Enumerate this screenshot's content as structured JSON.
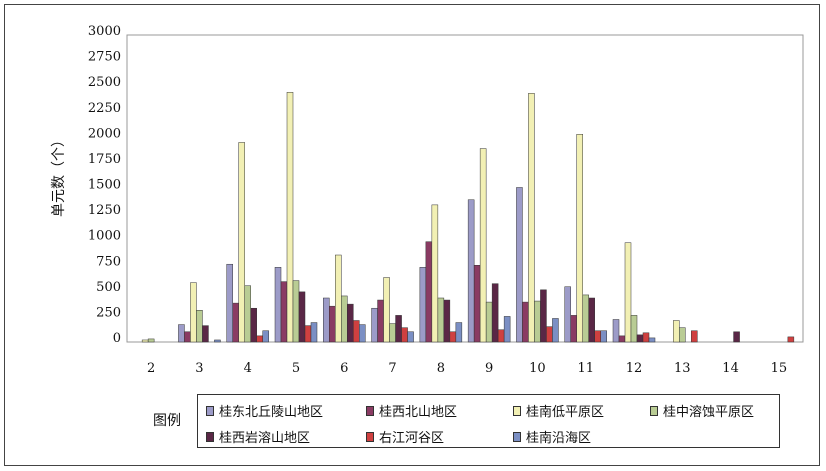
{
  "chart_data": {
    "type": "bar",
    "title": "",
    "xlabel": "",
    "ylabel": "单元数（个）",
    "categories": [
      "2",
      "3",
      "4",
      "5",
      "6",
      "7",
      "8",
      "9",
      "10",
      "11",
      "12",
      "13",
      "14",
      "15"
    ],
    "y_tick_labels": [
      "0",
      "250",
      "500",
      "750",
      "1000",
      "1250",
      "1500",
      "1750",
      "2000",
      "2250",
      "2500",
      "2750",
      "3000"
    ],
    "ylim": [
      0,
      3000
    ],
    "grid": false,
    "legend_title": "图例",
    "legend_position": "bottom",
    "series": [
      {
        "name": "桂东北丘陵山地区",
        "color": "#9c9bc8",
        "values": [
          0,
          170,
          760,
          730,
          430,
          330,
          730,
          1390,
          1510,
          540,
          220,
          0,
          0,
          0
        ]
      },
      {
        "name": "桂西北山地区",
        "color": "#8a3b63",
        "values": [
          0,
          100,
          380,
          590,
          350,
          410,
          980,
          750,
          390,
          260,
          60,
          0,
          0,
          0
        ]
      },
      {
        "name": "桂南低平原区",
        "color": "#f2f0b4",
        "values": [
          20,
          580,
          1950,
          2440,
          850,
          630,
          1340,
          1890,
          2430,
          2030,
          970,
          210,
          0,
          0
        ]
      },
      {
        "name": "桂中溶蚀平原区",
        "color": "#b9cc94",
        "values": [
          30,
          310,
          550,
          600,
          450,
          180,
          430,
          390,
          400,
          460,
          260,
          140,
          0,
          0
        ]
      },
      {
        "name": "桂西岩溶山地区",
        "color": "#5a2746",
        "values": [
          0,
          160,
          330,
          490,
          370,
          260,
          410,
          570,
          510,
          430,
          70,
          0,
          100,
          0
        ]
      },
      {
        "name": "右江河谷区",
        "color": "#cf4040",
        "values": [
          0,
          0,
          60,
          160,
          210,
          140,
          100,
          120,
          150,
          110,
          90,
          110,
          0,
          50
        ]
      },
      {
        "name": "桂南沿海区",
        "color": "#7b8fc4",
        "values": [
          0,
          20,
          110,
          190,
          170,
          100,
          190,
          250,
          230,
          110,
          40,
          0,
          0,
          0
        ]
      }
    ]
  }
}
